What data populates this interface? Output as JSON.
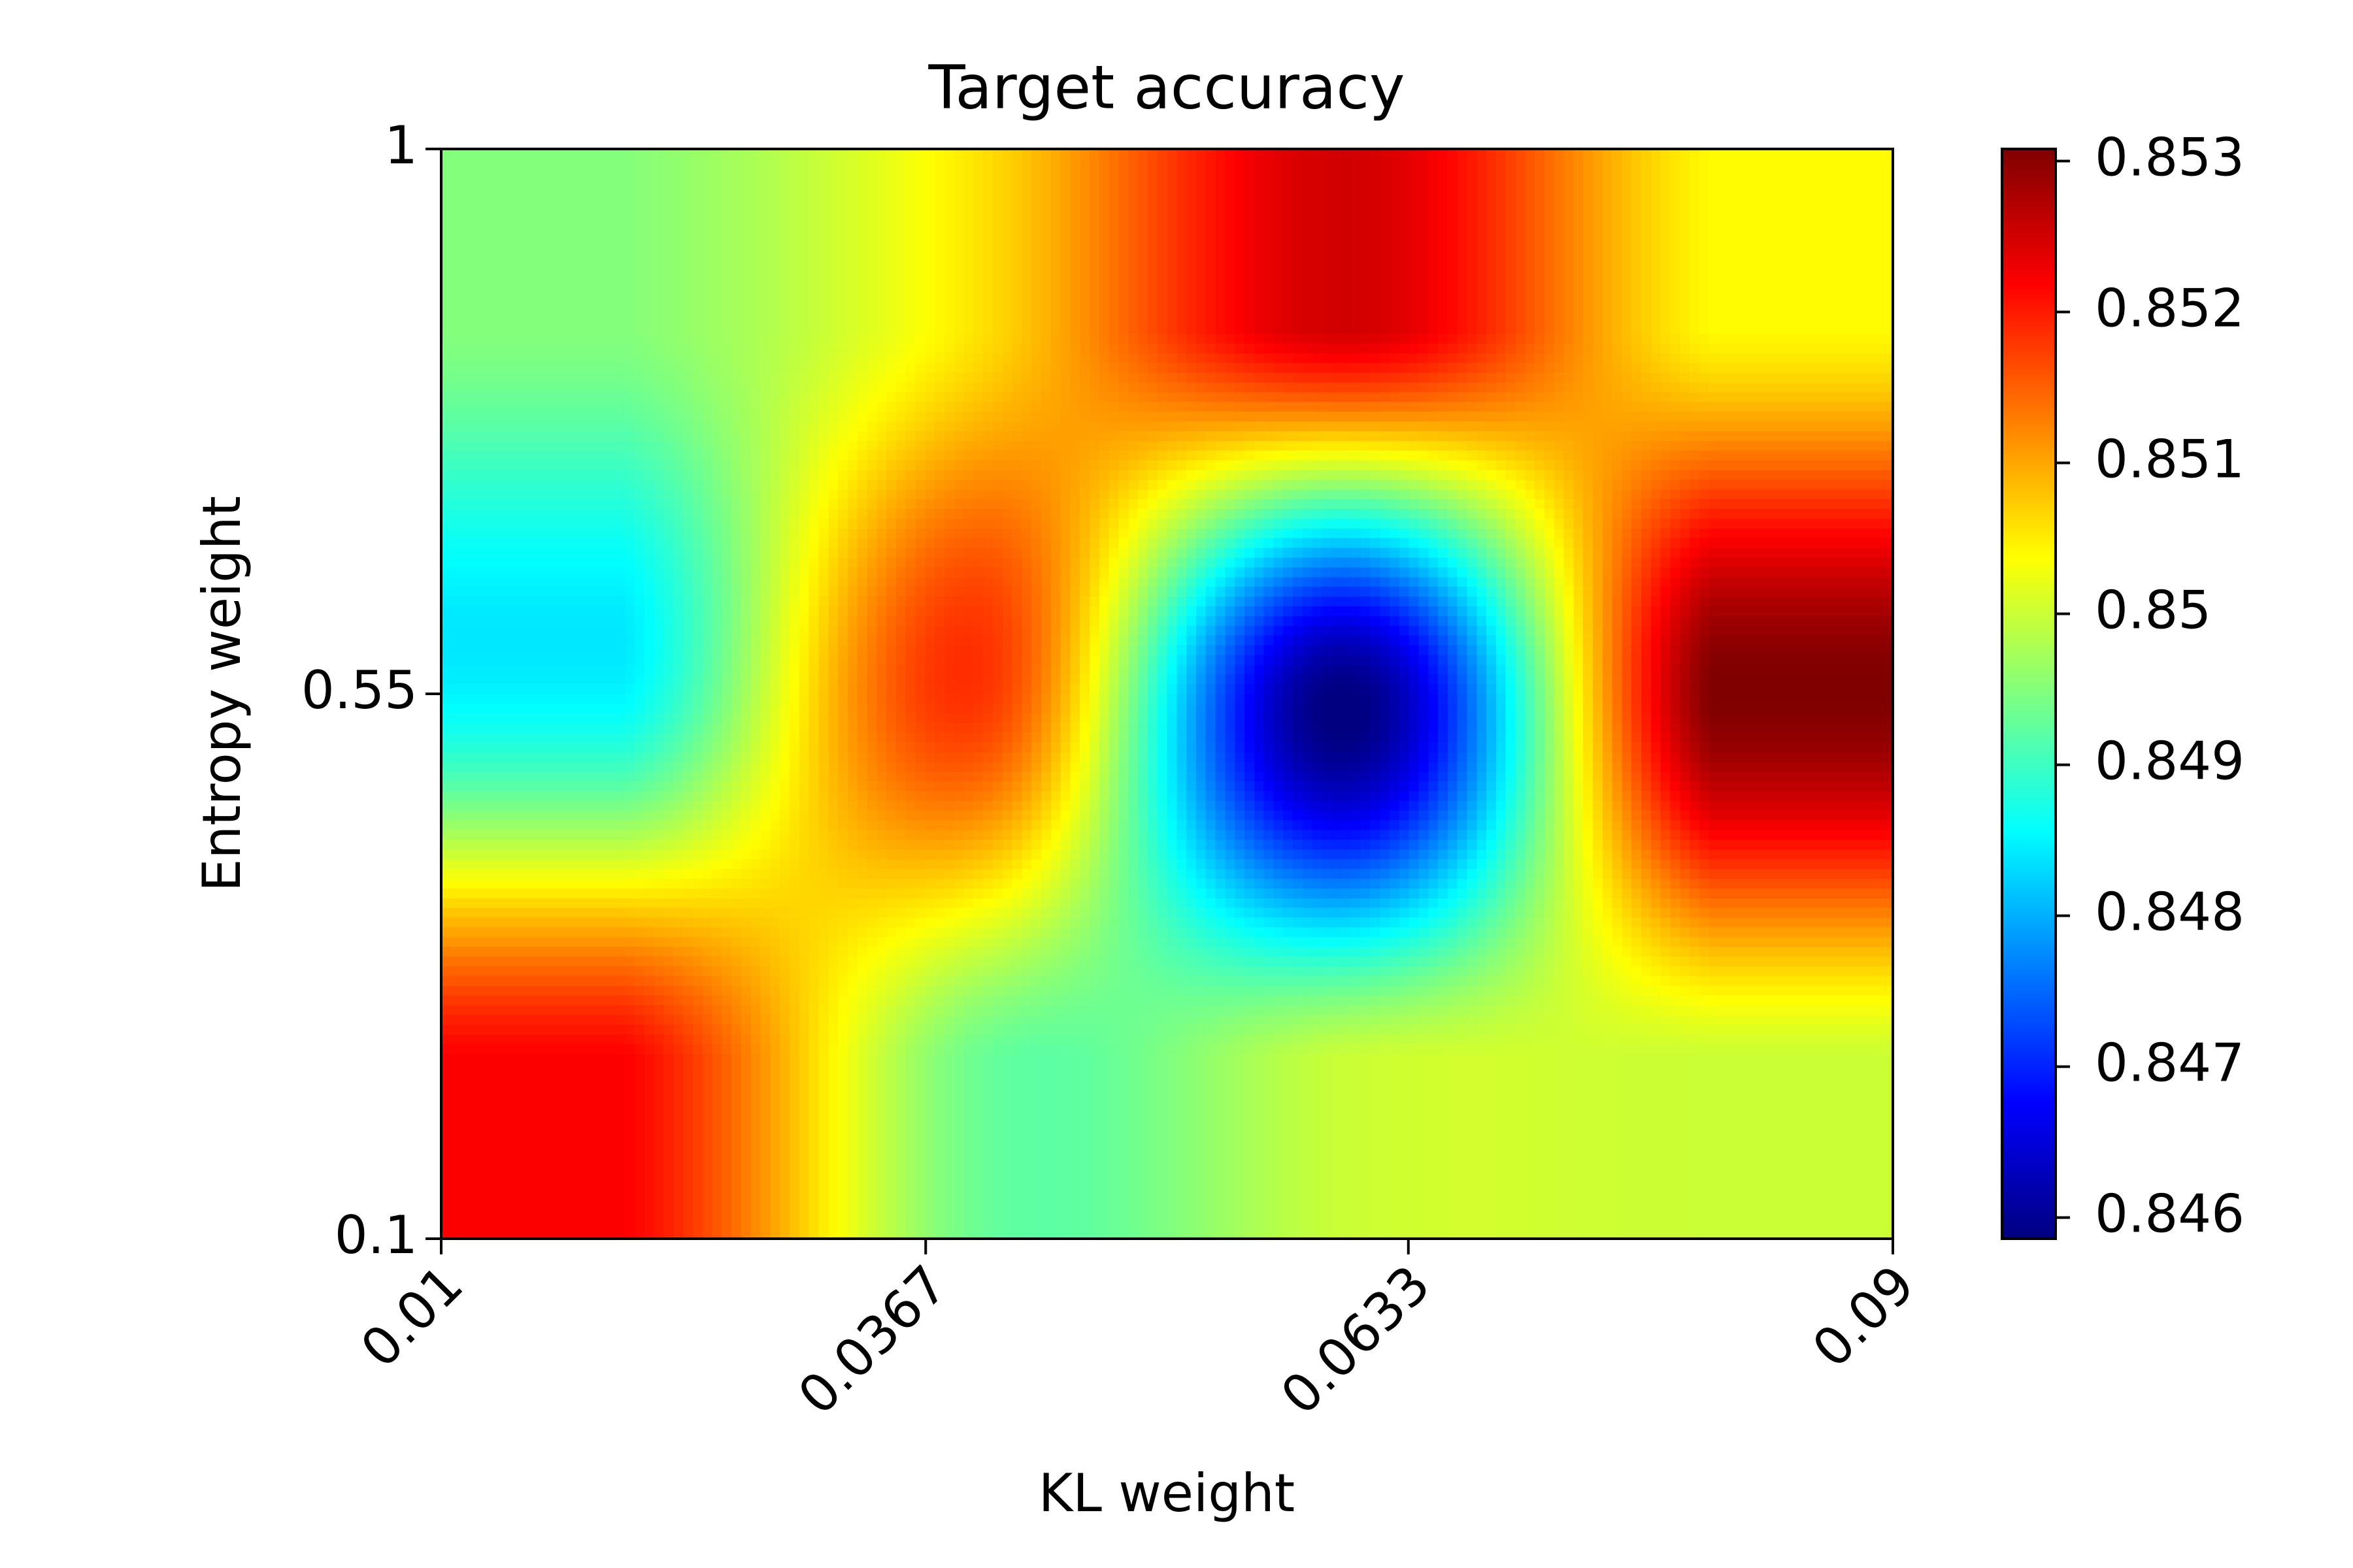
{
  "chart_data": {
    "type": "heatmap",
    "title": "Target accuracy",
    "x_label": "KL weight",
    "y_label": "Entropy weight",
    "z": [
      [
        0.8495,
        0.8506,
        0.8525,
        0.8504
      ],
      [
        0.8485,
        0.8518,
        0.84586,
        0.85308
      ],
      [
        0.8522,
        0.8493,
        0.85,
        0.85
      ]
    ],
    "xlim": [
      0.01,
      0.09
    ],
    "ylim": [
      0.1,
      1.0
    ],
    "xticks": [
      0.01,
      0.0367,
      0.0633,
      0.09
    ],
    "yticks": [
      0.1,
      0.55,
      1.0
    ],
    "colormap": "jet",
    "clim": [
      0.84586,
      0.85308
    ],
    "cticks": [
      0.846,
      0.847,
      0.848,
      0.849,
      0.85,
      0.851,
      0.852,
      0.853
    ],
    "interpolation": "bicubic"
  }
}
